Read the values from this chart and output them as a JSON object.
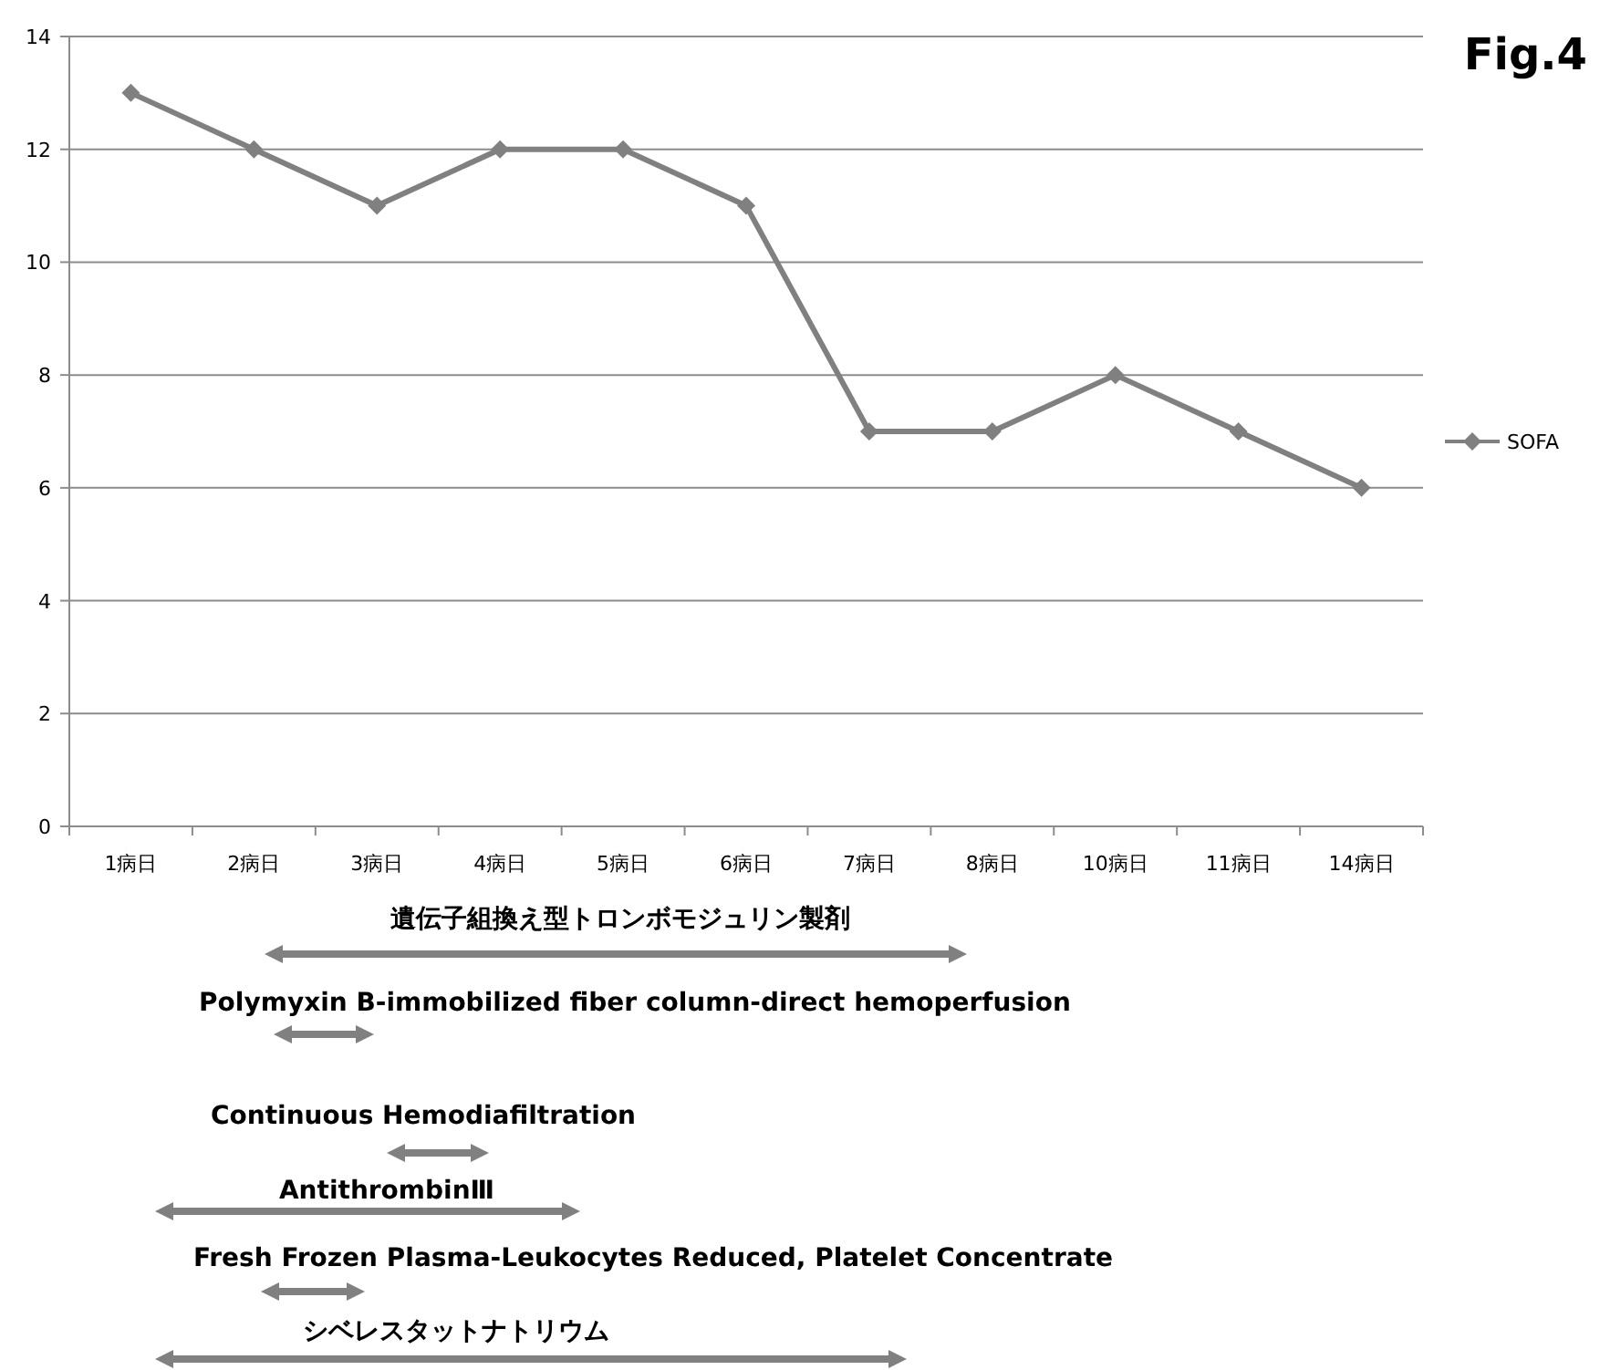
{
  "chart_data": {
    "type": "line",
    "title": "Fig.4",
    "categories": [
      "1病日",
      "2病日",
      "3病日",
      "4病日",
      "5病日",
      "6病日",
      "7病日",
      "8病日",
      "10病日",
      "11病日",
      "14病日"
    ],
    "series": [
      {
        "name": "SOFA",
        "color": "#808080",
        "values": [
          13,
          12,
          11,
          12,
          12,
          11,
          7,
          7,
          8,
          7,
          6
        ]
      }
    ],
    "ylim": [
      0,
      14
    ],
    "yticks": [
      0,
      2,
      4,
      6,
      8,
      10,
      12,
      14
    ],
    "grid": "y",
    "legend": "right",
    "marker": "diamond",
    "line_style": "solid",
    "annotations": [
      "遺伝子組換え型トロンボモジュリン製剤",
      "Polymyxin B-immobilized fiber column-direct hemoperfusion",
      "Continuous Hemodiafiltration",
      "AntithrombinⅢ",
      "Fresh Frozen Plasma-Leukocytes Reduced, Platelet Concentrate",
      "シベレスタットナトリウム"
    ]
  }
}
